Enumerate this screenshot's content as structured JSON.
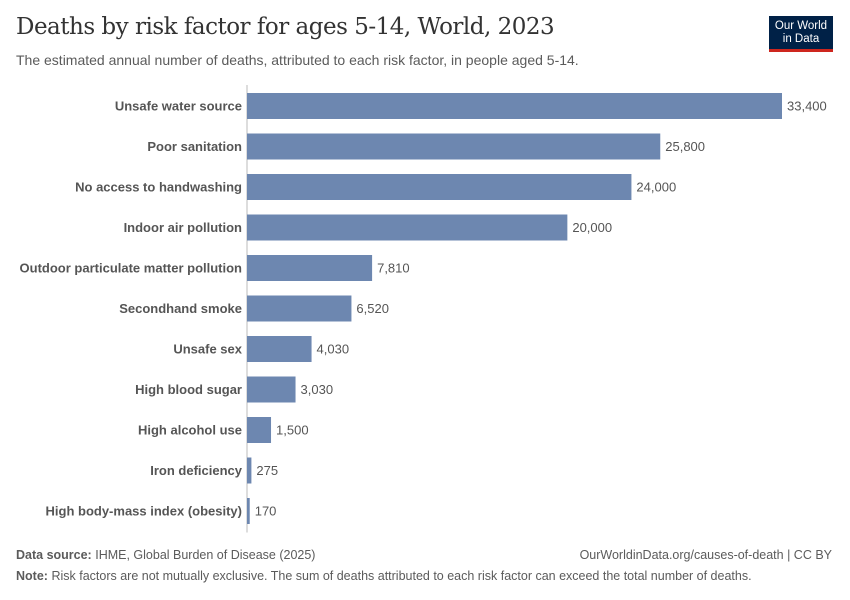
{
  "header": {
    "title": "Deaths by risk factor for ages 5-14, World, 2023",
    "subtitle": "The estimated annual number of deaths, attributed to each risk factor, in people aged 5-14.",
    "logo_line1": "Our World",
    "logo_line2": "in Data"
  },
  "footer": {
    "source_label": "Data source:",
    "source_text": "IHME, Global Burden of Disease (2025)",
    "url": "OurWorldinData.org/causes-of-death | CC BY",
    "note_label": "Note:",
    "note_text": "Risk factors are not mutually exclusive. The sum of deaths attributed to each risk factor can exceed the total number of deaths."
  },
  "chart_data": {
    "type": "bar",
    "orientation": "horizontal",
    "title": "Deaths by risk factor for ages 5-14, World, 2023",
    "categories": [
      "Unsafe water source",
      "Poor sanitation",
      "No access to handwashing",
      "Indoor air pollution",
      "Outdoor particulate matter pollution",
      "Secondhand smoke",
      "Unsafe sex",
      "High blood sugar",
      "High alcohol use",
      "Iron deficiency",
      "High body-mass index (obesity)"
    ],
    "values": [
      33400,
      25800,
      24000,
      20000,
      7810,
      6520,
      4030,
      3030,
      1500,
      275,
      170
    ],
    "value_labels": [
      "33,400",
      "25,800",
      "24,000",
      "20,000",
      "7,810",
      "6,520",
      "4,030",
      "3,030",
      "1,500",
      "275",
      "170"
    ],
    "xlim": [
      0,
      33400
    ],
    "grid": false,
    "bar_color": "#6d87b0"
  }
}
